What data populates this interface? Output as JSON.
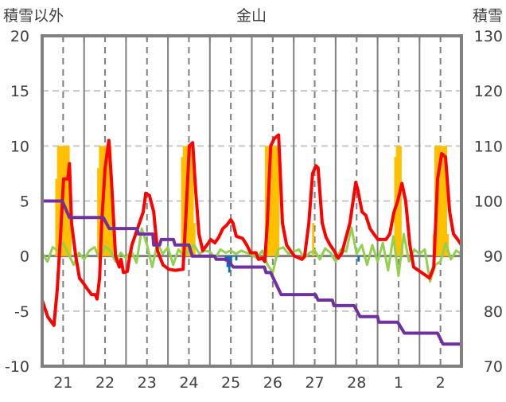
{
  "chart_data": {
    "type": "bar+line",
    "title": "金山",
    "ylabel_left": "積雪以外",
    "ylabel_right": "積雪",
    "ylim_left": [
      -10,
      20
    ],
    "ylim_right": [
      70,
      130
    ],
    "yticks_left": [
      "20",
      "15",
      "10",
      "5",
      "0",
      "-5",
      "-10"
    ],
    "yticks_right": [
      "130",
      "120",
      "110",
      "100",
      "90",
      "80",
      "70"
    ],
    "x_unit": "days since the 21st 00:00",
    "xlim": [
      0,
      10
    ],
    "xtick_labels": [
      "21",
      "22",
      "23",
      "24",
      "25",
      "26",
      "27",
      "28",
      "1",
      "2"
    ],
    "grid": true,
    "colors": {
      "red": "#ff0000",
      "yellow": "#ffc000",
      "green": "#92d050",
      "purple": "#7030a0",
      "blue": "#0070c0",
      "frame": "#808080"
    },
    "series": [
      {
        "name": "yellow-bars",
        "type": "bar",
        "axis": "left",
        "color": "#ffc000",
        "points": [
          [
            0.333,
            7
          ],
          [
            0.375,
            10
          ],
          [
            0.417,
            10
          ],
          [
            0.458,
            10
          ],
          [
            0.5,
            10
          ],
          [
            0.542,
            10
          ],
          [
            0.583,
            10
          ],
          [
            0.625,
            10
          ],
          [
            0.667,
            6
          ],
          [
            1.333,
            8
          ],
          [
            1.375,
            10
          ],
          [
            1.417,
            10
          ],
          [
            1.458,
            10
          ],
          [
            1.5,
            10
          ],
          [
            1.542,
            10
          ],
          [
            1.583,
            10
          ],
          [
            1.625,
            10
          ],
          [
            1.667,
            6
          ],
          [
            3.333,
            9
          ],
          [
            3.375,
            10
          ],
          [
            3.417,
            10
          ],
          [
            3.458,
            10
          ],
          [
            3.5,
            10
          ],
          [
            3.542,
            10
          ],
          [
            3.583,
            9
          ],
          [
            3.625,
            3
          ],
          [
            5.333,
            10
          ],
          [
            5.375,
            10
          ],
          [
            5.417,
            10
          ],
          [
            5.458,
            10
          ],
          [
            5.5,
            10
          ],
          [
            5.542,
            10
          ],
          [
            5.583,
            10
          ],
          [
            5.625,
            10
          ],
          [
            6.458,
            3
          ],
          [
            8.417,
            9
          ],
          [
            8.458,
            10
          ],
          [
            8.5,
            10
          ],
          [
            8.542,
            10
          ],
          [
            8.583,
            1
          ],
          [
            9.333,
            2
          ],
          [
            9.375,
            10
          ],
          [
            9.417,
            10
          ],
          [
            9.458,
            10
          ],
          [
            9.5,
            10
          ],
          [
            9.542,
            10
          ],
          [
            9.583,
            10
          ],
          [
            9.625,
            10
          ],
          [
            9.667,
            2
          ]
        ]
      },
      {
        "name": "blue-bars",
        "type": "bar",
        "axis": "left",
        "color": "#0070c0",
        "points": [
          [
            4.375,
            -0.5
          ],
          [
            4.417,
            -1.0
          ],
          [
            4.458,
            -1.5
          ],
          [
            4.5,
            -0.8
          ],
          [
            4.625,
            -0.4
          ],
          [
            7.542,
            -0.5
          ]
        ]
      },
      {
        "name": "red-line",
        "type": "line",
        "axis": "left",
        "color": "#ff0000",
        "points": [
          [
            0,
            -4
          ],
          [
            0.13,
            -5.5
          ],
          [
            0.28,
            -6.3
          ],
          [
            0.36,
            -3
          ],
          [
            0.44,
            2
          ],
          [
            0.51,
            7
          ],
          [
            0.61,
            7
          ],
          [
            0.65,
            8.4
          ],
          [
            0.7,
            3
          ],
          [
            0.8,
            0
          ],
          [
            0.89,
            -2
          ],
          [
            0.99,
            -2.5
          ],
          [
            1.08,
            -3
          ],
          [
            1.18,
            -3.5
          ],
          [
            1.27,
            -3.5
          ],
          [
            1.31,
            -3.9
          ],
          [
            1.37,
            -2
          ],
          [
            1.42,
            3
          ],
          [
            1.5,
            8
          ],
          [
            1.59,
            10.5
          ],
          [
            1.65,
            7
          ],
          [
            1.75,
            0
          ],
          [
            1.84,
            -1
          ],
          [
            1.88,
            -0.3
          ],
          [
            1.94,
            -1.5
          ],
          [
            2.03,
            -1.4
          ],
          [
            2.09,
            0
          ],
          [
            2.14,
            1
          ],
          [
            2.41,
            4
          ],
          [
            2.47,
            5.7
          ],
          [
            2.56,
            5.5
          ],
          [
            2.66,
            4
          ],
          [
            2.75,
            0.5
          ],
          [
            2.88,
            -0.8
          ],
          [
            3.02,
            -1.2
          ],
          [
            3.17,
            -1.3
          ],
          [
            3.36,
            -1.2
          ],
          [
            3.42,
            3
          ],
          [
            3.51,
            10
          ],
          [
            3.59,
            10.3
          ],
          [
            3.66,
            6
          ],
          [
            3.74,
            2
          ],
          [
            3.83,
            0.5
          ],
          [
            3.93,
            1
          ],
          [
            4.02,
            1.5
          ],
          [
            4.12,
            1.2
          ],
          [
            4.21,
            1.7
          ],
          [
            4.31,
            2.5
          ],
          [
            4.4,
            2.8
          ],
          [
            4.5,
            3.3
          ],
          [
            4.55,
            3
          ],
          [
            4.63,
            1.8
          ],
          [
            4.78,
            1.6
          ],
          [
            4.88,
            1
          ],
          [
            4.97,
            0.3
          ],
          [
            5.1,
            0.3
          ],
          [
            5.16,
            -0.3
          ],
          [
            5.26,
            -0.2
          ],
          [
            5.31,
            -0.5
          ],
          [
            5.37,
            3
          ],
          [
            5.45,
            10
          ],
          [
            5.54,
            10.7
          ],
          [
            5.64,
            11
          ],
          [
            5.73,
            3
          ],
          [
            5.83,
            1
          ],
          [
            5.92,
            0.5
          ],
          [
            6.02,
            0
          ],
          [
            6.2,
            -0.3
          ],
          [
            6.26,
            0
          ],
          [
            6.36,
            3
          ],
          [
            6.45,
            7.5
          ],
          [
            6.53,
            8.2
          ],
          [
            6.58,
            8
          ],
          [
            6.68,
            3
          ],
          [
            6.77,
            1.7
          ],
          [
            6.87,
            1
          ],
          [
            6.96,
            0.5
          ],
          [
            7.06,
            -0.2
          ],
          [
            7.15,
            0.3
          ],
          [
            7.34,
            3
          ],
          [
            7.48,
            6.7
          ],
          [
            7.53,
            6
          ],
          [
            7.63,
            4
          ],
          [
            7.72,
            3.7
          ],
          [
            7.82,
            2.5
          ],
          [
            7.91,
            2
          ],
          [
            8.01,
            1.5
          ],
          [
            8.1,
            1.5
          ],
          [
            8.2,
            1.5
          ],
          [
            8.29,
            2
          ],
          [
            8.39,
            4
          ],
          [
            8.48,
            5
          ],
          [
            8.58,
            6.6
          ],
          [
            8.67,
            5
          ],
          [
            8.77,
            1
          ],
          [
            8.86,
            -1
          ],
          [
            9.05,
            -1.5
          ],
          [
            9.24,
            -2
          ],
          [
            9.34,
            -1
          ],
          [
            9.43,
            7
          ],
          [
            9.53,
            9.3
          ],
          [
            9.62,
            9
          ],
          [
            9.72,
            4
          ],
          [
            9.81,
            2
          ],
          [
            9.91,
            1.5
          ],
          [
            10,
            1
          ]
        ]
      },
      {
        "name": "green-line",
        "type": "line",
        "axis": "left",
        "color": "#92d050",
        "points": [
          [
            0,
            0.3
          ],
          [
            0.125,
            -0.5
          ],
          [
            0.25,
            0.8
          ],
          [
            0.375,
            0.5
          ],
          [
            0.5,
            1.2
          ],
          [
            0.625,
            0.2
          ],
          [
            0.75,
            -0.8
          ],
          [
            0.875,
            0.3
          ],
          [
            1,
            -0.3
          ],
          [
            1.125,
            0.5
          ],
          [
            1.25,
            0.8
          ],
          [
            1.375,
            -0.3
          ],
          [
            1.5,
            0.9
          ],
          [
            1.625,
            0.5
          ],
          [
            1.75,
            -0.5
          ],
          [
            1.875,
            0.3
          ],
          [
            2,
            -0.2
          ],
          [
            2.125,
            0.5
          ],
          [
            2.25,
            -0.6
          ],
          [
            2.375,
            2.5
          ],
          [
            2.5,
            1
          ],
          [
            2.625,
            -1
          ],
          [
            2.75,
            1.2
          ],
          [
            2.875,
            0.2
          ],
          [
            3,
            0.8
          ],
          [
            3.125,
            -0.8
          ],
          [
            3.25,
            0.6
          ],
          [
            3.375,
            0
          ],
          [
            3.5,
            0.5
          ],
          [
            3.625,
            1
          ],
          [
            3.75,
            0.2
          ],
          [
            3.875,
            0.5
          ],
          [
            4,
            0.4
          ],
          [
            4.125,
            -0.2
          ],
          [
            4.25,
            0.6
          ],
          [
            4.375,
            0.3
          ],
          [
            4.5,
            0.5
          ],
          [
            4.625,
            0.2
          ],
          [
            4.75,
            0.5
          ],
          [
            4.875,
            0.3
          ],
          [
            5,
            0.1
          ],
          [
            5.125,
            -0.2
          ],
          [
            5.25,
            0.5
          ],
          [
            5.375,
            -0.8
          ],
          [
            5.5,
            -1.5
          ],
          [
            5.625,
            0.6
          ],
          [
            5.75,
            0.8
          ],
          [
            5.875,
            0.2
          ],
          [
            6,
            0.4
          ],
          [
            6.125,
            0.6
          ],
          [
            6.25,
            -0.2
          ],
          [
            6.375,
            0.3
          ],
          [
            6.5,
            0.5
          ],
          [
            6.625,
            -0.3
          ],
          [
            6.75,
            0.7
          ],
          [
            6.875,
            0.3
          ],
          [
            7,
            -0.5
          ],
          [
            7.125,
            0.6
          ],
          [
            7.25,
            0.4
          ],
          [
            7.375,
            2.6
          ],
          [
            7.5,
            0.2
          ],
          [
            7.625,
            1
          ],
          [
            7.75,
            -0.8
          ],
          [
            7.875,
            1
          ],
          [
            8,
            -0.5
          ],
          [
            8.125,
            1.2
          ],
          [
            8.25,
            -1.3
          ],
          [
            8.375,
            1.8
          ],
          [
            8.5,
            -1.8
          ],
          [
            8.625,
            2
          ],
          [
            8.75,
            -0.5
          ],
          [
            8.875,
            0.6
          ],
          [
            9,
            0.2
          ],
          [
            9.125,
            0.6
          ],
          [
            9.25,
            -2.3
          ],
          [
            9.375,
            -0.8
          ],
          [
            9.5,
            -0.5
          ],
          [
            9.625,
            1.2
          ],
          [
            9.75,
            -0.3
          ],
          [
            9.875,
            0.5
          ],
          [
            10,
            0.2
          ]
        ]
      },
      {
        "name": "purple-snow-depth",
        "type": "step",
        "axis": "right",
        "color": "#7030a0",
        "points": [
          [
            0,
            100
          ],
          [
            0.48,
            100
          ],
          [
            0.65,
            97
          ],
          [
            1.46,
            97
          ],
          [
            1.6,
            95
          ],
          [
            2.26,
            95
          ],
          [
            2.3,
            94
          ],
          [
            2.64,
            94
          ],
          [
            2.66,
            92
          ],
          [
            2.8,
            92
          ],
          [
            2.84,
            93
          ],
          [
            3.13,
            93
          ],
          [
            3.17,
            92
          ],
          [
            3.5,
            92
          ],
          [
            3.58,
            90
          ],
          [
            4.12,
            90
          ],
          [
            4.15,
            89.4
          ],
          [
            4.4,
            89.4
          ],
          [
            4.56,
            88
          ],
          [
            5.3,
            88
          ],
          [
            5.34,
            87
          ],
          [
            5.45,
            87
          ],
          [
            5.7,
            83
          ],
          [
            6.52,
            83
          ],
          [
            6.58,
            82
          ],
          [
            6.92,
            82
          ],
          [
            6.96,
            81
          ],
          [
            7.44,
            81
          ],
          [
            7.58,
            79
          ],
          [
            8.0,
            79
          ],
          [
            8.03,
            78
          ],
          [
            8.48,
            78
          ],
          [
            8.64,
            76
          ],
          [
            9.43,
            76
          ],
          [
            9.56,
            74
          ],
          [
            10,
            74
          ]
        ]
      }
    ]
  }
}
